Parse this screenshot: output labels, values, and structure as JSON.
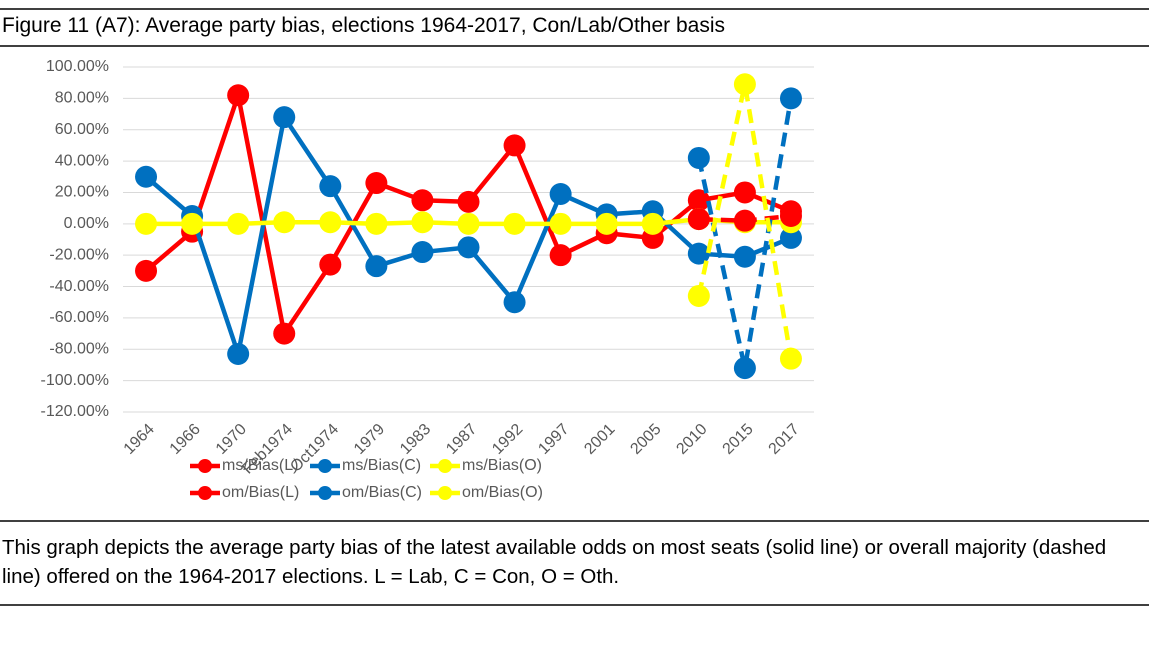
{
  "header": {
    "title": "Figure 11 (A7): Average party bias, elections 1964-2017, Con/Lab/Other basis"
  },
  "chart_data": {
    "type": "line",
    "categories": [
      "1964",
      "1966",
      "1970",
      "Feb1974",
      "Oct1974",
      "1979",
      "1983",
      "1987",
      "1992",
      "1997",
      "2001",
      "2005",
      "2010",
      "2015",
      "2017"
    ],
    "series": [
      {
        "name": "ms/Bias(L)",
        "color": "#ff0000",
        "dashed": false,
        "values": [
          -30,
          -5,
          82,
          -70,
          -26,
          26,
          15,
          14,
          50,
          -20,
          -6,
          -9,
          15,
          20,
          8
        ]
      },
      {
        "name": "ms/Bias(C)",
        "color": "#0070c0",
        "dashed": false,
        "values": [
          30,
          5,
          -83,
          68,
          24,
          -27,
          -18,
          -15,
          -50,
          19,
          6,
          8,
          -19,
          -21,
          -9
        ]
      },
      {
        "name": "ms/Bias(O)",
        "color": "#ffff00",
        "dashed": false,
        "values": [
          0,
          0,
          0,
          1,
          1,
          0,
          1,
          0,
          0,
          0,
          0,
          0,
          3,
          1,
          1
        ]
      },
      {
        "name": "om/Bias(L)",
        "color": "#ff0000",
        "dashed": true,
        "values": [
          null,
          null,
          null,
          null,
          null,
          null,
          null,
          null,
          null,
          null,
          null,
          null,
          3,
          2,
          5
        ]
      },
      {
        "name": "om/Bias(C)",
        "color": "#0070c0",
        "dashed": true,
        "values": [
          null,
          null,
          null,
          null,
          null,
          null,
          null,
          null,
          null,
          null,
          null,
          null,
          42,
          -92,
          80
        ]
      },
      {
        "name": "om/Bias(O)",
        "color": "#ffff00",
        "dashed": true,
        "values": [
          null,
          null,
          null,
          null,
          null,
          null,
          null,
          null,
          null,
          null,
          null,
          null,
          -46,
          89,
          -86
        ]
      }
    ],
    "ylim": [
      -120,
      100
    ],
    "yticks": [
      {
        "value": 100,
        "label": "100.00%"
      },
      {
        "value": 80,
        "label": "80.00%"
      },
      {
        "value": 60,
        "label": "60.00%"
      },
      {
        "value": 40,
        "label": "40.00%"
      },
      {
        "value": 20,
        "label": "20.00%"
      },
      {
        "value": 0,
        "label": "0.00%"
      },
      {
        "value": -20,
        "label": "-20.00%"
      },
      {
        "value": -40,
        "label": "-40.00%"
      },
      {
        "value": -60,
        "label": "-60.00%"
      },
      {
        "value": -80,
        "label": "-80.00%"
      },
      {
        "value": -100,
        "label": "-100.00%"
      },
      {
        "value": -120,
        "label": "-120.00%"
      }
    ],
    "grid": true,
    "legend": "bottom"
  },
  "caption": "This graph depicts the average party bias of the latest available odds on most seats (solid line) or overall majority (dashed line) offered on the 1964-2017 elections. L = Lab, C = Con, O = Oth."
}
